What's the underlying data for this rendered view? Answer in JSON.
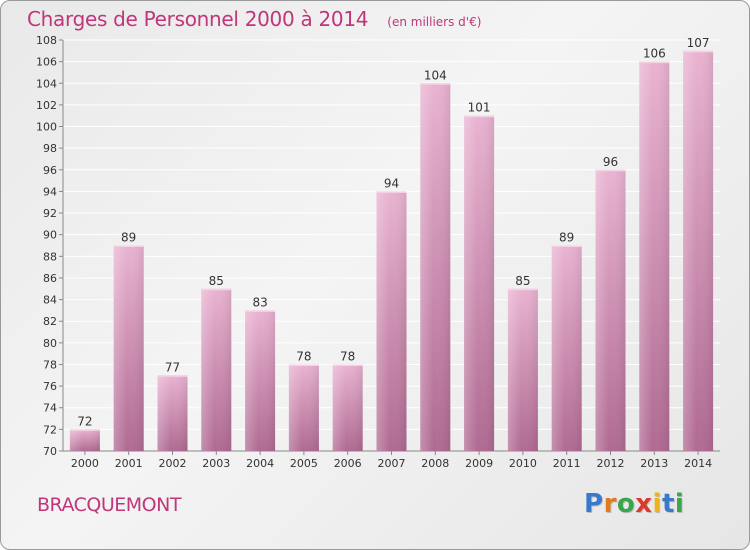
{
  "title": "Charges de Personnel 2000 à 2014",
  "subtitle": "(en milliers d'€)",
  "commune": "BRACQUEMONT",
  "logo": {
    "text": "Proxiti",
    "letters": [
      {
        "char": "P",
        "color": "#3a78c9"
      },
      {
        "char": "r",
        "color": "#e07a1c"
      },
      {
        "char": "o",
        "color": "#3aa54a"
      },
      {
        "char": "x",
        "color": "#d83a2c"
      },
      {
        "char": "i",
        "color": "#f0b21c"
      },
      {
        "char": "t",
        "color": "#3a78c9"
      },
      {
        "char": "i",
        "color": "#3aa54a"
      }
    ]
  },
  "colors": {
    "bar": "#d88db6",
    "bar_light": "#e9b3d1",
    "bar_dark": "#b06a92",
    "title": "#c0367a",
    "axis": "#888888",
    "grid": "#ffffff"
  },
  "chart_data": {
    "type": "bar",
    "title": "Charges de Personnel 2000 à 2014",
    "subtitle": "(en milliers d'€)",
    "xlabel": "",
    "ylabel": "",
    "categories": [
      "2000",
      "2001",
      "2002",
      "2003",
      "2004",
      "2005",
      "2006",
      "2007",
      "2008",
      "2009",
      "2010",
      "2011",
      "2012",
      "2013",
      "2014"
    ],
    "values": [
      72,
      89,
      77,
      85,
      83,
      78,
      78,
      94,
      104,
      101,
      85,
      89,
      96,
      106,
      107
    ],
    "ylim": [
      70,
      108
    ],
    "yticks": [
      70,
      72,
      74,
      76,
      78,
      80,
      82,
      84,
      86,
      88,
      90,
      92,
      94,
      96,
      98,
      100,
      102,
      104,
      106,
      108
    ],
    "grid": true,
    "data_labels": true
  }
}
